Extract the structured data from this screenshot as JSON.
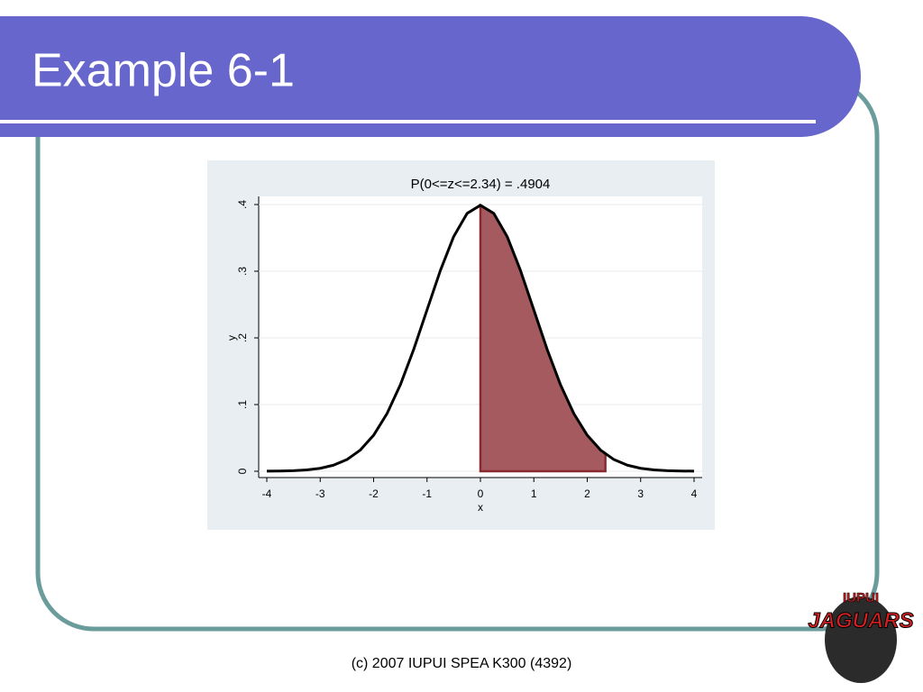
{
  "slide": {
    "title": "Example 6-1",
    "footer": "(c) 2007 IUPUI SPEA K300 (4392)",
    "logo": [
      "IUPUI",
      "JAGUARS"
    ]
  },
  "chart_data": {
    "type": "line",
    "title": "P(0<=z<=2.34) = .4904",
    "x_label": "x",
    "y_label": "y",
    "x": [
      -4,
      -3.75,
      -3.5,
      -3.25,
      -3,
      -2.75,
      -2.5,
      -2.25,
      -2,
      -1.75,
      -1.5,
      -1.25,
      -1,
      -0.75,
      -0.5,
      -0.25,
      0,
      0.25,
      0.5,
      0.75,
      1,
      1.25,
      1.5,
      1.75,
      2,
      2.25,
      2.5,
      2.75,
      3,
      3.25,
      3.5,
      3.75,
      4
    ],
    "values": [
      0.0001,
      0.0004,
      0.0009,
      0.002,
      0.0044,
      0.0091,
      0.0175,
      0.0317,
      0.054,
      0.0863,
      0.1295,
      0.1826,
      0.242,
      0.3011,
      0.3521,
      0.3867,
      0.3989,
      0.3867,
      0.3521,
      0.3011,
      0.242,
      0.1826,
      0.1295,
      0.0863,
      0.054,
      0.0317,
      0.0175,
      0.0091,
      0.0044,
      0.002,
      0.0009,
      0.0004,
      0.0001
    ],
    "color": "#000000",
    "shade": {
      "from": 0,
      "to": 2.34,
      "color": "#a55a5f"
    },
    "xlim": [
      -4,
      4
    ],
    "xticks": [
      -4,
      -3,
      -2,
      -1,
      0,
      1,
      2,
      3,
      4
    ],
    "ylim": [
      0,
      0.4
    ],
    "yticks": [
      0,
      {
        "value": 0.1,
        "label": ".1"
      },
      {
        "value": 0.2,
        "label": ".2"
      },
      {
        "value": 0.3,
        "label": ".3"
      },
      {
        "value": 0.4,
        "label": ".4"
      }
    ],
    "grid": true
  }
}
